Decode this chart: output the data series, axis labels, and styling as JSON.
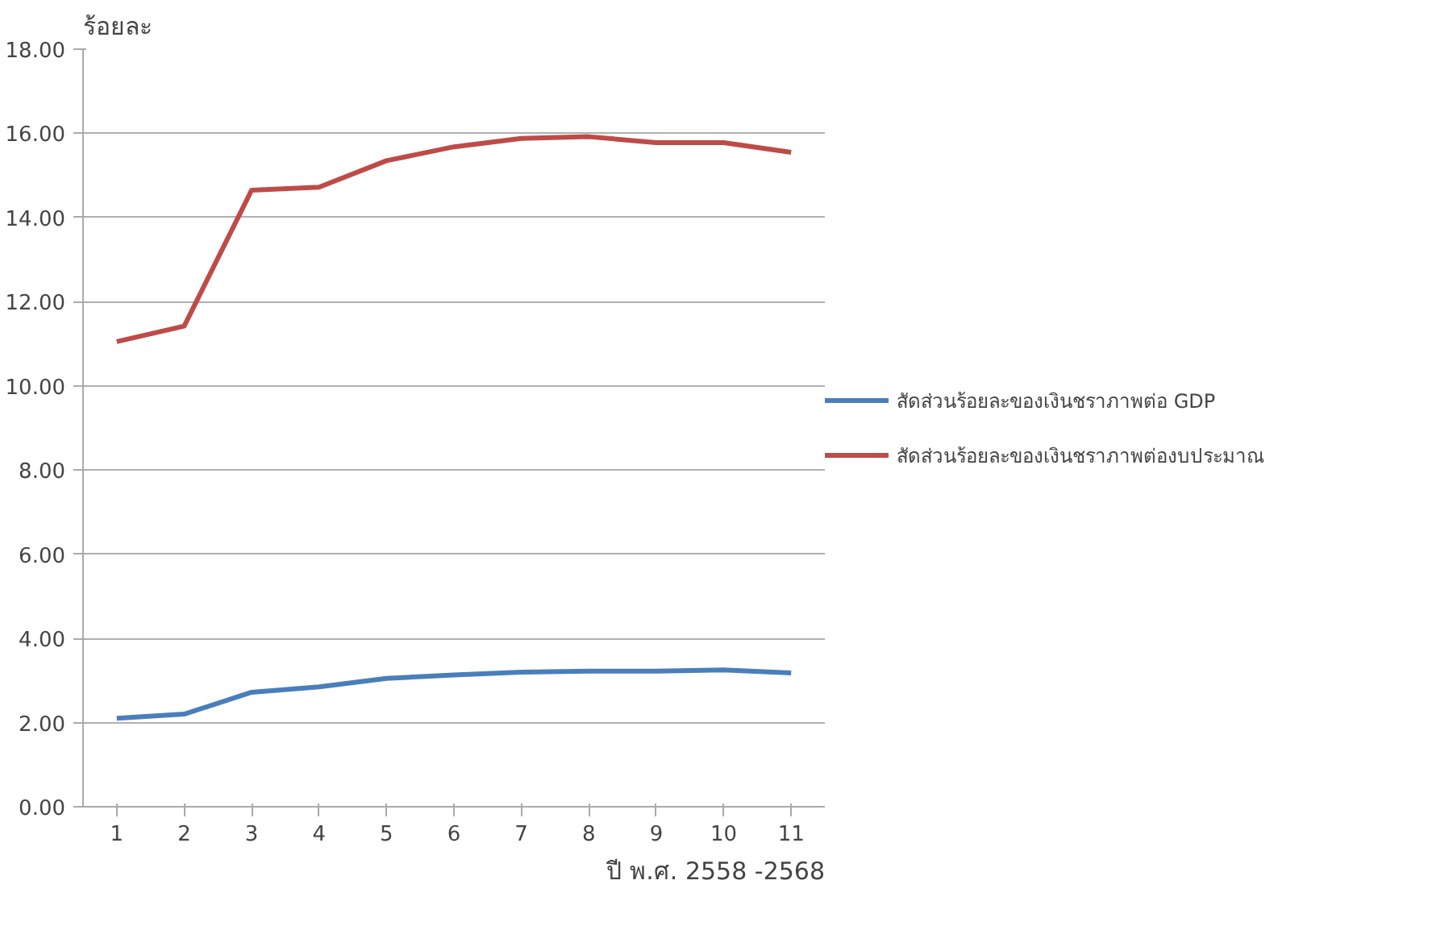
{
  "chart_data": {
    "type": "line",
    "ylabel": "ร้อยละ",
    "xlabel": "ปี พ.ศ. 2558 -2568",
    "categories": [
      "1",
      "2",
      "3",
      "4",
      "5",
      "6",
      "7",
      "8",
      "9",
      "10",
      "11"
    ],
    "series": [
      {
        "name": "สัดส่วนร้อยละของเงินชราภาพต่อ GDP",
        "color": "#4a7ebb",
        "values": [
          2.1,
          2.2,
          2.72,
          2.85,
          3.05,
          3.13,
          3.2,
          3.22,
          3.22,
          3.25,
          3.18
        ]
      },
      {
        "name": "สัดส่วนร้อยละของเงินชราภาพต่องบประมาณ",
        "color": "#be4b48",
        "values": [
          11.05,
          11.42,
          14.65,
          14.72,
          15.35,
          15.68,
          15.88,
          15.92,
          15.78,
          15.78,
          15.55
        ]
      }
    ],
    "ylim": [
      0,
      18
    ],
    "yticks": [
      {
        "value": 0,
        "label": "0.00"
      },
      {
        "value": 2,
        "label": "2.00"
      },
      {
        "value": 4,
        "label": "4.00"
      },
      {
        "value": 6,
        "label": "6.00"
      },
      {
        "value": 8,
        "label": "8.00"
      },
      {
        "value": 10,
        "label": "10.00"
      },
      {
        "value": 12,
        "label": "12.00"
      },
      {
        "value": 14,
        "label": "14.00"
      },
      {
        "value": 16,
        "label": "16.00"
      },
      {
        "value": 18,
        "label": "18.00"
      }
    ],
    "grid": "y",
    "legend": "right",
    "marker": "none",
    "line_style": "solid"
  }
}
